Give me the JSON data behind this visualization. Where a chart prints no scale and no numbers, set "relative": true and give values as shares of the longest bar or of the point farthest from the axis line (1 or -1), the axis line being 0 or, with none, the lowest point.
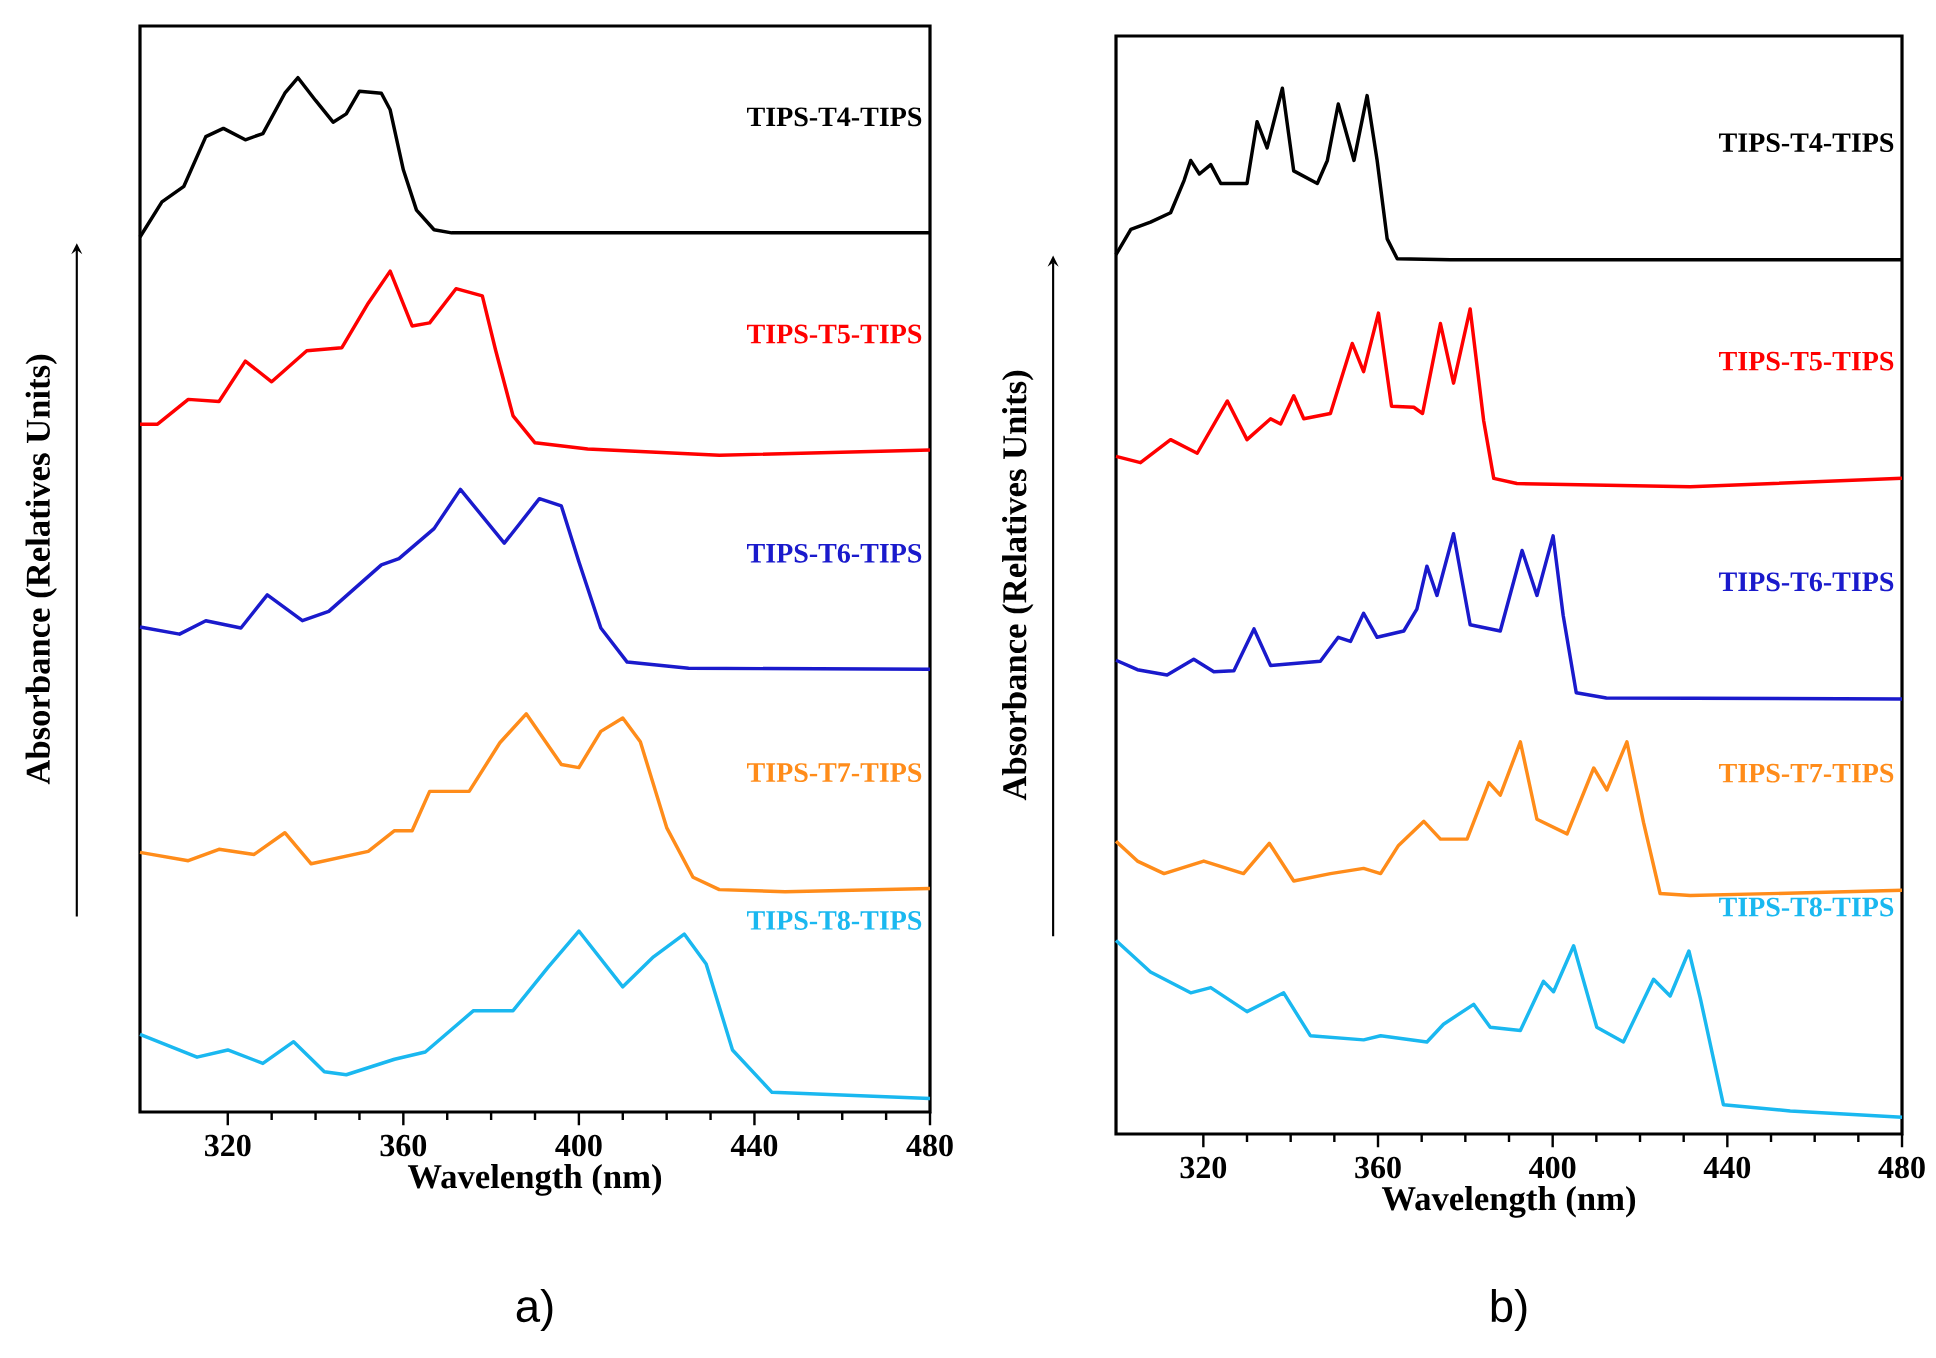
{
  "chart_data": [
    {
      "type": "line",
      "title": "a)",
      "xlabel": "Wavelength (nm)",
      "ylabel": "Absorbance (Relatives Units)",
      "relative": true,
      "xlim": [
        300,
        480
      ],
      "xticks": [
        320,
        360,
        400,
        440,
        480
      ],
      "series": [
        {
          "name": "TIPS-T4-TIPS",
          "color": "#000000",
          "x": [
            300,
            305,
            310,
            315,
            319,
            324,
            328,
            333,
            336,
            340,
            344,
            347,
            350,
            355,
            357,
            360,
            363,
            367,
            371,
            391,
            480
          ],
          "values": [
            0.846,
            0.88,
            0.895,
            0.943,
            0.951,
            0.94,
            0.946,
            0.985,
            1.0,
            0.978,
            0.957,
            0.965,
            0.987,
            0.985,
            0.969,
            0.911,
            0.872,
            0.853,
            0.85,
            0.85,
            0.85
          ]
        },
        {
          "name": "TIPS-T5-TIPS",
          "color": "#ff0000",
          "x": [
            300,
            304,
            311,
            318,
            324,
            330,
            338,
            346,
            352,
            357,
            362,
            366,
            372,
            378,
            381,
            385,
            390,
            402,
            432,
            480
          ],
          "values": [
            0.665,
            0.665,
            0.689,
            0.687,
            0.726,
            0.706,
            0.736,
            0.739,
            0.782,
            0.813,
            0.76,
            0.763,
            0.796,
            0.789,
            0.737,
            0.673,
            0.647,
            0.641,
            0.635,
            0.64
          ]
        },
        {
          "name": "TIPS-T6-TIPS",
          "color": "#1a1acc",
          "x": [
            300,
            309,
            315,
            323,
            329,
            337,
            343,
            355,
            359,
            367,
            373,
            383,
            391,
            396,
            400,
            405,
            411,
            425,
            480
          ],
          "values": [
            0.469,
            0.462,
            0.475,
            0.468,
            0.5,
            0.475,
            0.484,
            0.529,
            0.535,
            0.564,
            0.602,
            0.55,
            0.593,
            0.586,
            0.532,
            0.468,
            0.435,
            0.429,
            0.428
          ]
        },
        {
          "name": "TIPS-T7-TIPS",
          "color": "#ff8c1a",
          "x": [
            300,
            311,
            318,
            326,
            333,
            339,
            352,
            358,
            362,
            366,
            375,
            382,
            388,
            396,
            400,
            405,
            410,
            414,
            420,
            426,
            432,
            447,
            480
          ],
          "values": [
            0.251,
            0.243,
            0.254,
            0.249,
            0.27,
            0.24,
            0.252,
            0.272,
            0.272,
            0.31,
            0.31,
            0.357,
            0.385,
            0.336,
            0.333,
            0.368,
            0.381,
            0.358,
            0.275,
            0.227,
            0.215,
            0.213,
            0.216
          ]
        },
        {
          "name": "TIPS-T8-TIPS",
          "color": "#1ab8f0",
          "x": [
            300,
            313,
            320,
            328,
            335,
            342,
            347,
            358,
            365,
            376,
            385,
            393,
            400,
            410,
            417,
            424,
            429,
            435,
            444,
            480
          ],
          "values": [
            0.075,
            0.053,
            0.06,
            0.047,
            0.068,
            0.039,
            0.036,
            0.051,
            0.058,
            0.098,
            0.098,
            0.14,
            0.175,
            0.121,
            0.15,
            0.172,
            0.143,
            0.06,
            0.019,
            0.013
          ]
        }
      ]
    },
    {
      "type": "line",
      "title": "b)",
      "xlabel": "Wavelength (nm)",
      "ylabel": "Absorbance (Relatives Units)",
      "relative": true,
      "xlim": [
        300,
        480
      ],
      "xticks": [
        320,
        360,
        400,
        440,
        480
      ],
      "series": [
        {
          "name": "TIPS-T4-TIPS",
          "color": "#000000",
          "x": [
            300,
            303.4,
            307.9,
            312.5,
            315.6,
            317.1,
            319.1,
            321.7,
            324,
            330,
            332.3,
            334.6,
            338.1,
            340.7,
            346.1,
            348.4,
            350.9,
            354.5,
            357.5,
            359.8,
            362.1,
            364.4,
            376.6,
            480
          ],
          "values": [
            0.841,
            0.865,
            0.872,
            0.881,
            0.912,
            0.931,
            0.918,
            0.927,
            0.909,
            0.909,
            0.968,
            0.943,
            1.0,
            0.921,
            0.909,
            0.931,
            0.985,
            0.931,
            0.993,
            0.931,
            0.856,
            0.837,
            0.836,
            0.836
          ]
        },
        {
          "name": "TIPS-T5-TIPS",
          "color": "#ff0000",
          "x": [
            300,
            305.6,
            312.5,
            318.6,
            325.5,
            330,
            335.4,
            337.7,
            340.7,
            343,
            349.1,
            354.1,
            356.7,
            360.1,
            363.1,
            368.2,
            370.2,
            374.3,
            377.3,
            381.1,
            384.2,
            386.5,
            391.8,
            431.5,
            480
          ],
          "values": [
            0.648,
            0.642,
            0.664,
            0.651,
            0.701,
            0.664,
            0.684,
            0.679,
            0.706,
            0.684,
            0.689,
            0.756,
            0.729,
            0.785,
            0.696,
            0.695,
            0.689,
            0.775,
            0.718,
            0.789,
            0.682,
            0.627,
            0.622,
            0.619,
            0.627
          ]
        },
        {
          "name": "TIPS-T6-TIPS",
          "color": "#1a1acc",
          "x": [
            300,
            304.9,
            311.7,
            317.8,
            322.4,
            327,
            331.6,
            335.4,
            346.8,
            350.9,
            353.7,
            356.7,
            359.8,
            365.9,
            368.9,
            371.2,
            373.5,
            377.3,
            381.1,
            388,
            393,
            396.4,
            400.1,
            402.4,
            405.4,
            412.3,
            480
          ],
          "values": [
            0.453,
            0.444,
            0.439,
            0.454,
            0.442,
            0.443,
            0.483,
            0.448,
            0.452,
            0.475,
            0.471,
            0.498,
            0.475,
            0.481,
            0.502,
            0.543,
            0.515,
            0.574,
            0.487,
            0.481,
            0.558,
            0.515,
            0.572,
            0.496,
            0.422,
            0.417,
            0.416
          ]
        },
        {
          "name": "TIPS-T7-TIPS",
          "color": "#ff8c1a",
          "x": [
            300,
            304.9,
            311,
            320.1,
            329.2,
            335.1,
            340.7,
            349.1,
            356.7,
            360.6,
            364.7,
            370.5,
            374.3,
            380.4,
            385.4,
            388,
            392.6,
            396.4,
            403.3,
            409.4,
            412.4,
            417,
            420.8,
            424.6,
            431.5,
            480
          ],
          "values": [
            0.28,
            0.261,
            0.249,
            0.261,
            0.249,
            0.278,
            0.242,
            0.249,
            0.254,
            0.249,
            0.276,
            0.299,
            0.282,
            0.282,
            0.336,
            0.324,
            0.375,
            0.301,
            0.287,
            0.35,
            0.329,
            0.375,
            0.298,
            0.23,
            0.228,
            0.233
          ]
        },
        {
          "name": "TIPS-T8-TIPS",
          "color": "#1ab8f0",
          "x": [
            300,
            307.9,
            317.1,
            321.7,
            330,
            338.4,
            344.5,
            356.7,
            360.6,
            371.2,
            375,
            381.9,
            385.7,
            392.6,
            397.9,
            400.2,
            404.8,
            410.1,
            416.2,
            423.1,
            426.9,
            431.2,
            433.8,
            439.1,
            454.4,
            480
          ],
          "values": [
            0.185,
            0.155,
            0.135,
            0.14,
            0.117,
            0.135,
            0.094,
            0.09,
            0.094,
            0.088,
            0.105,
            0.124,
            0.102,
            0.099,
            0.146,
            0.136,
            0.18,
            0.102,
            0.088,
            0.148,
            0.132,
            0.175,
            0.13,
            0.028,
            0.022,
            0.016
          ]
        }
      ]
    }
  ]
}
